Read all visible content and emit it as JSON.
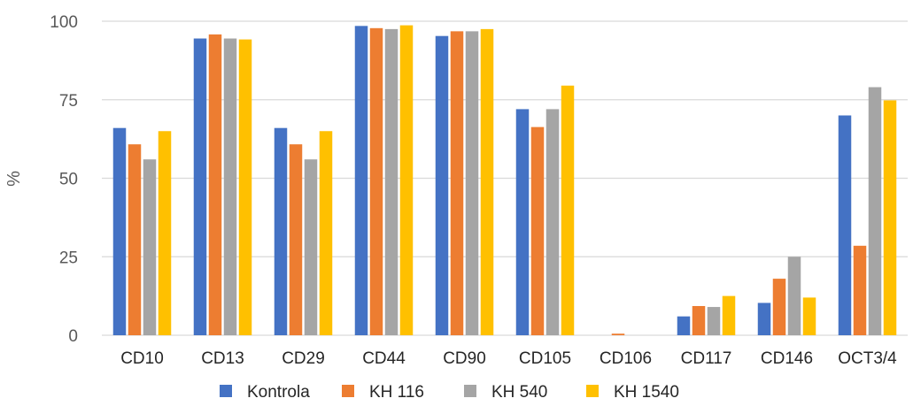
{
  "chart_data": {
    "type": "bar",
    "title": "",
    "xlabel": "",
    "ylabel": "%",
    "ylim": [
      0,
      100
    ],
    "yticks": [
      0,
      25,
      50,
      75,
      100
    ],
    "grid": true,
    "legend_position": "bottom",
    "categories": [
      "CD10",
      "CD13",
      "CD29",
      "CD44",
      "CD90",
      "CD105",
      "CD106",
      "CD117",
      "CD146",
      "OCT3/4"
    ],
    "series": [
      {
        "name": "Kontrola",
        "color": "#4472C4",
        "values": [
          66,
          94.5,
          66,
          98.5,
          95.3,
          72,
          0,
          6,
          10.3,
          70
        ]
      },
      {
        "name": "KH 116",
        "color": "#ED7D31",
        "values": [
          60.8,
          95.8,
          60.8,
          97.8,
          96.8,
          66.3,
          0.5,
          9.3,
          18,
          28.5
        ]
      },
      {
        "name": "KH 540",
        "color": "#A5A5A5",
        "values": [
          56,
          94.5,
          56,
          97.5,
          96.8,
          72,
          0,
          9,
          25,
          79
        ]
      },
      {
        "name": "KH 1540",
        "color": "#FFC000",
        "values": [
          65,
          94.2,
          65,
          98.7,
          97.5,
          79.5,
          0,
          12.5,
          12,
          74.8
        ]
      }
    ]
  }
}
